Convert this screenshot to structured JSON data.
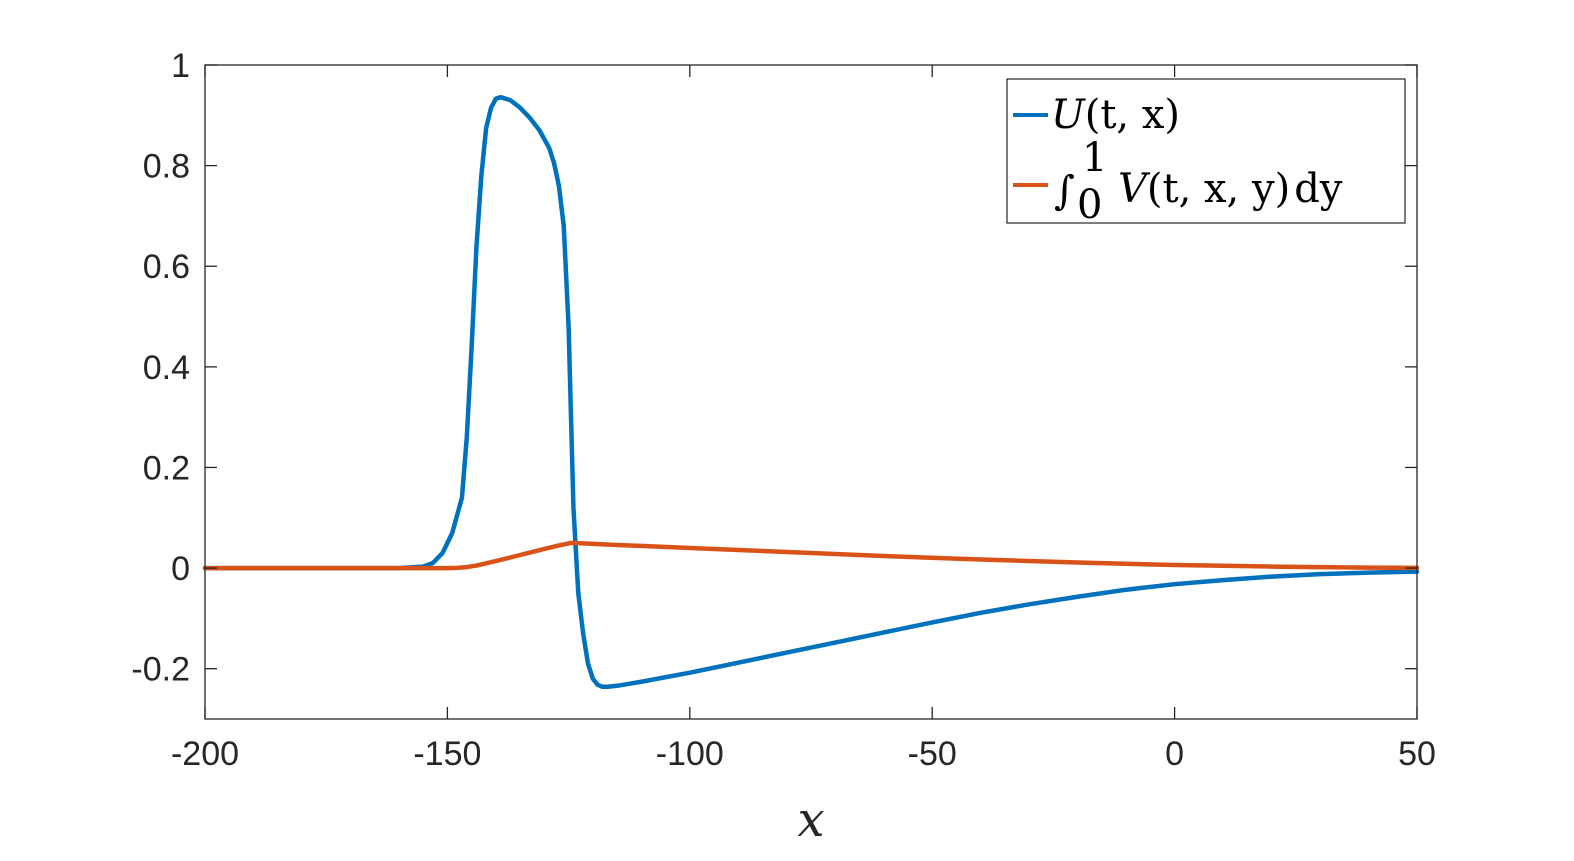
{
  "chart_data": {
    "type": "line",
    "title": "",
    "xlabel": "x",
    "ylabel": "",
    "xlim": [
      -200,
      50
    ],
    "ylim": [
      -0.3,
      1
    ],
    "xticks": [
      -200,
      -150,
      -100,
      -50,
      0,
      50
    ],
    "xtick_labels": [
      "-200",
      "-150",
      "-100",
      "-50",
      "0",
      "50"
    ],
    "yticks": [
      -0.2,
      0,
      0.2,
      0.4,
      0.6,
      0.8,
      1
    ],
    "ytick_labels": [
      "-0.2",
      "0",
      "0.2",
      "0.4",
      "0.6",
      "0.8",
      "1"
    ],
    "grid": false,
    "legend_position": "top-right",
    "series": [
      {
        "name": "U(t, x)",
        "color": "#0072BD",
        "x": [
          -200,
          -160,
          -155,
          -153,
          -151,
          -149,
          -147,
          -146,
          -145,
          -144,
          -143,
          -142,
          -141,
          -140,
          -139,
          -137,
          -135,
          -133,
          -131,
          -129,
          -128,
          -127,
          -126,
          -125,
          -124.5,
          -124,
          -123,
          -122,
          -121,
          -120,
          -119,
          -118,
          -117,
          -115,
          -110,
          -100,
          -90,
          -80,
          -70,
          -60,
          -50,
          -40,
          -30,
          -20,
          -10,
          0,
          10,
          20,
          30,
          40,
          50
        ],
        "y": [
          0,
          0,
          0.003,
          0.01,
          0.03,
          0.07,
          0.14,
          0.26,
          0.44,
          0.64,
          0.78,
          0.875,
          0.915,
          0.933,
          0.936,
          0.93,
          0.915,
          0.895,
          0.87,
          0.835,
          0.805,
          0.76,
          0.68,
          0.48,
          0.3,
          0.12,
          -0.05,
          -0.13,
          -0.19,
          -0.22,
          -0.232,
          -0.236,
          -0.236,
          -0.234,
          -0.226,
          -0.208,
          -0.188,
          -0.168,
          -0.148,
          -0.128,
          -0.108,
          -0.089,
          -0.072,
          -0.057,
          -0.043,
          -0.032,
          -0.024,
          -0.017,
          -0.012,
          -0.009,
          -0.007
        ]
      },
      {
        "name": "∫₀¹ V(t, x, y) dy",
        "color": "#D95319",
        "x": [
          -200,
          -150,
          -148,
          -146,
          -144,
          -140,
          -135,
          -130,
          -127,
          -124.5,
          -122,
          -115,
          -100,
          -80,
          -60,
          -40,
          -20,
          0,
          20,
          40,
          50
        ],
        "y": [
          0,
          0,
          0.0005,
          0.002,
          0.005,
          0.014,
          0.026,
          0.038,
          0.045,
          0.05,
          0.049,
          0.046,
          0.04,
          0.032,
          0.024,
          0.017,
          0.011,
          0.006,
          0.003,
          0.001,
          0.0005
        ]
      }
    ],
    "legend": {
      "entries": [
        {
          "label_main": "U",
          "label_args": "(t, x)"
        },
        {
          "integral_lower": "0",
          "integral_upper": "1",
          "label_main": "V",
          "label_args": "(t, x, y)",
          "differential": "dy"
        }
      ]
    }
  }
}
